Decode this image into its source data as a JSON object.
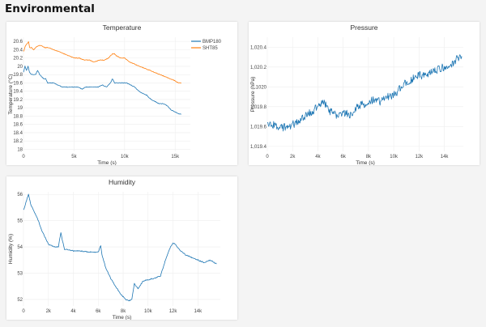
{
  "page": {
    "title": "Environmental"
  },
  "chart_data": [
    {
      "id": "temperature",
      "type": "line",
      "title": "Temperature",
      "xlabel": "Time (s)",
      "ylabel": "Temperature (°C)",
      "xlim": [
        0,
        16500
      ],
      "ylim": [
        17.95,
        20.7
      ],
      "xticks": [
        0,
        5000,
        10000,
        15000
      ],
      "xtick_labels": [
        "0",
        "5k",
        "10k",
        "15k"
      ],
      "yticks": [
        18,
        18.2,
        18.4,
        18.6,
        18.8,
        19,
        19.2,
        19.4,
        19.6,
        19.8,
        20,
        20.2,
        20.4,
        20.6
      ],
      "ytick_labels": [
        "18",
        "18.2",
        "18.4",
        "18.6",
        "18.8",
        "19",
        "19.2",
        "19.4",
        "19.6",
        "19.8",
        "20",
        "20.2",
        "20.4",
        "20.6"
      ],
      "legend": "top-right",
      "series": [
        {
          "name": "BMP180",
          "color": "#1f77b4",
          "x": [
            0,
            150,
            300,
            450,
            600,
            800,
            1000,
            1200,
            1400,
            1600,
            1800,
            2000,
            2200,
            2400,
            2600,
            3000,
            3400,
            3800,
            4200,
            4600,
            5000,
            5400,
            5800,
            6200,
            6600,
            7000,
            7400,
            7800,
            8200,
            8600,
            8800,
            9000,
            9400,
            9800,
            10200,
            10600,
            11000,
            11400,
            11800,
            12200,
            12600,
            13000,
            13400,
            13800,
            14200,
            14600,
            15000,
            15400,
            15600
          ],
          "y": [
            19.85,
            20,
            19.9,
            20,
            19.85,
            19.8,
            19.8,
            19.8,
            19.9,
            19.8,
            19.75,
            19.7,
            19.7,
            19.6,
            19.6,
            19.6,
            19.55,
            19.5,
            19.5,
            19.5,
            19.5,
            19.5,
            19.45,
            19.5,
            19.5,
            19.5,
            19.5,
            19.55,
            19.5,
            19.6,
            19.7,
            19.6,
            19.6,
            19.6,
            19.6,
            19.55,
            19.5,
            19.4,
            19.35,
            19.3,
            19.2,
            19.15,
            19.1,
            19.1,
            19.05,
            18.95,
            18.9,
            18.85,
            18.85
          ]
        },
        {
          "name": "SHT85",
          "color": "#ff7f0e",
          "x": [
            0,
            200,
            400,
            500,
            600,
            800,
            1000,
            1200,
            1500,
            1800,
            2100,
            2500,
            3000,
            3500,
            4000,
            4500,
            5000,
            5500,
            6000,
            6500,
            7000,
            7500,
            8000,
            8400,
            8800,
            9000,
            9200,
            9600,
            10000,
            10500,
            11000,
            11500,
            12000,
            12500,
            13000,
            13500,
            14000,
            14500,
            15000,
            15300,
            15600
          ],
          "y": [
            20.35,
            20.5,
            20.55,
            20.6,
            20.45,
            20.45,
            20.4,
            20.45,
            20.5,
            20.5,
            20.45,
            20.45,
            20.4,
            20.35,
            20.3,
            20.25,
            20.2,
            20.2,
            20.15,
            20.15,
            20.1,
            20.15,
            20.15,
            20.2,
            20.3,
            20.3,
            20.25,
            20.2,
            20.2,
            20.1,
            20.05,
            20.0,
            19.95,
            19.9,
            19.85,
            19.8,
            19.75,
            19.7,
            19.65,
            19.6,
            19.6
          ]
        }
      ]
    },
    {
      "id": "pressure",
      "type": "line",
      "title": "Pressure",
      "xlabel": "Time (s)",
      "ylabel": "Pressure (hPa)",
      "xlim": [
        0,
        15500
      ],
      "ylim": [
        1019.35,
        1020.5
      ],
      "xticks": [
        0,
        2000,
        4000,
        6000,
        8000,
        10000,
        12000,
        14000
      ],
      "xtick_labels": [
        "0",
        "2k",
        "4k",
        "6k",
        "8k",
        "10k",
        "12k",
        "14k"
      ],
      "yticks": [
        1019.4,
        1019.6,
        1019.8,
        1020,
        1020.2,
        1020.4
      ],
      "ytick_labels": [
        "1,019.4",
        "1,019.6",
        "1,019.8",
        "1020",
        "1,020.2",
        "1,020.4"
      ],
      "series": [
        {
          "name": "",
          "color": "#1f77b4",
          "x": [
            0,
            500,
            1000,
            1500,
            2000,
            2500,
            3000,
            3500,
            4000,
            4500,
            5000,
            5500,
            6000,
            6500,
            7000,
            7500,
            8000,
            8500,
            9000,
            9500,
            10000,
            10500,
            11000,
            11500,
            12000,
            12500,
            13000,
            13500,
            14000,
            14500,
            15000,
            15400
          ],
          "y": [
            1019.6,
            1019.62,
            1019.58,
            1019.6,
            1019.62,
            1019.66,
            1019.7,
            1019.75,
            1019.8,
            1019.85,
            1019.75,
            1019.72,
            1019.75,
            1019.72,
            1019.78,
            1019.82,
            1019.85,
            1019.88,
            1019.85,
            1019.9,
            1019.92,
            1019.98,
            1020.05,
            1020.08,
            1020.12,
            1020.1,
            1020.15,
            1020.18,
            1020.2,
            1020.22,
            1020.28,
            1020.3
          ]
        }
      ]
    },
    {
      "id": "humidity",
      "type": "line",
      "title": "Humidity",
      "xlabel": "Time (s)",
      "ylabel": "Humidity (%)",
      "xlim": [
        0,
        15800
      ],
      "ylim": [
        51.75,
        56.1
      ],
      "xticks": [
        0,
        2000,
        4000,
        6000,
        8000,
        10000,
        12000,
        14000
      ],
      "xtick_labels": [
        "0",
        "2k",
        "4k",
        "6k",
        "8k",
        "10k",
        "12k",
        "14k"
      ],
      "yticks": [
        52,
        53,
        54,
        55,
        56
      ],
      "ytick_labels": [
        "52",
        "53",
        "54",
        "55",
        "56"
      ],
      "series": [
        {
          "name": "",
          "color": "#1f77b4",
          "x": [
            0,
            200,
            400,
            600,
            800,
            1000,
            1200,
            1400,
            1600,
            1800,
            2000,
            2200,
            2500,
            2800,
            3000,
            3100,
            3300,
            3600,
            4000,
            4500,
            5000,
            5500,
            6000,
            6200,
            6300,
            6600,
            7000,
            7400,
            7800,
            8200,
            8500,
            8700,
            8900,
            9200,
            9600,
            10000,
            10500,
            11000,
            11400,
            11800,
            12000,
            12200,
            12500,
            13000,
            13500,
            14000,
            14500,
            15000,
            15500
          ],
          "y": [
            55.4,
            55.7,
            56.0,
            55.6,
            55.4,
            55.2,
            55.0,
            54.7,
            54.5,
            54.3,
            54.1,
            54.05,
            54.0,
            54.0,
            54.55,
            54.3,
            53.9,
            53.9,
            53.85,
            53.85,
            53.82,
            53.8,
            53.8,
            54.05,
            53.7,
            53.2,
            52.8,
            52.5,
            52.2,
            52.0,
            51.95,
            52.0,
            52.6,
            52.4,
            52.7,
            52.75,
            52.8,
            52.9,
            53.5,
            54.0,
            54.15,
            54.1,
            53.9,
            53.7,
            53.6,
            53.5,
            53.4,
            53.5,
            53.35
          ]
        }
      ]
    }
  ]
}
